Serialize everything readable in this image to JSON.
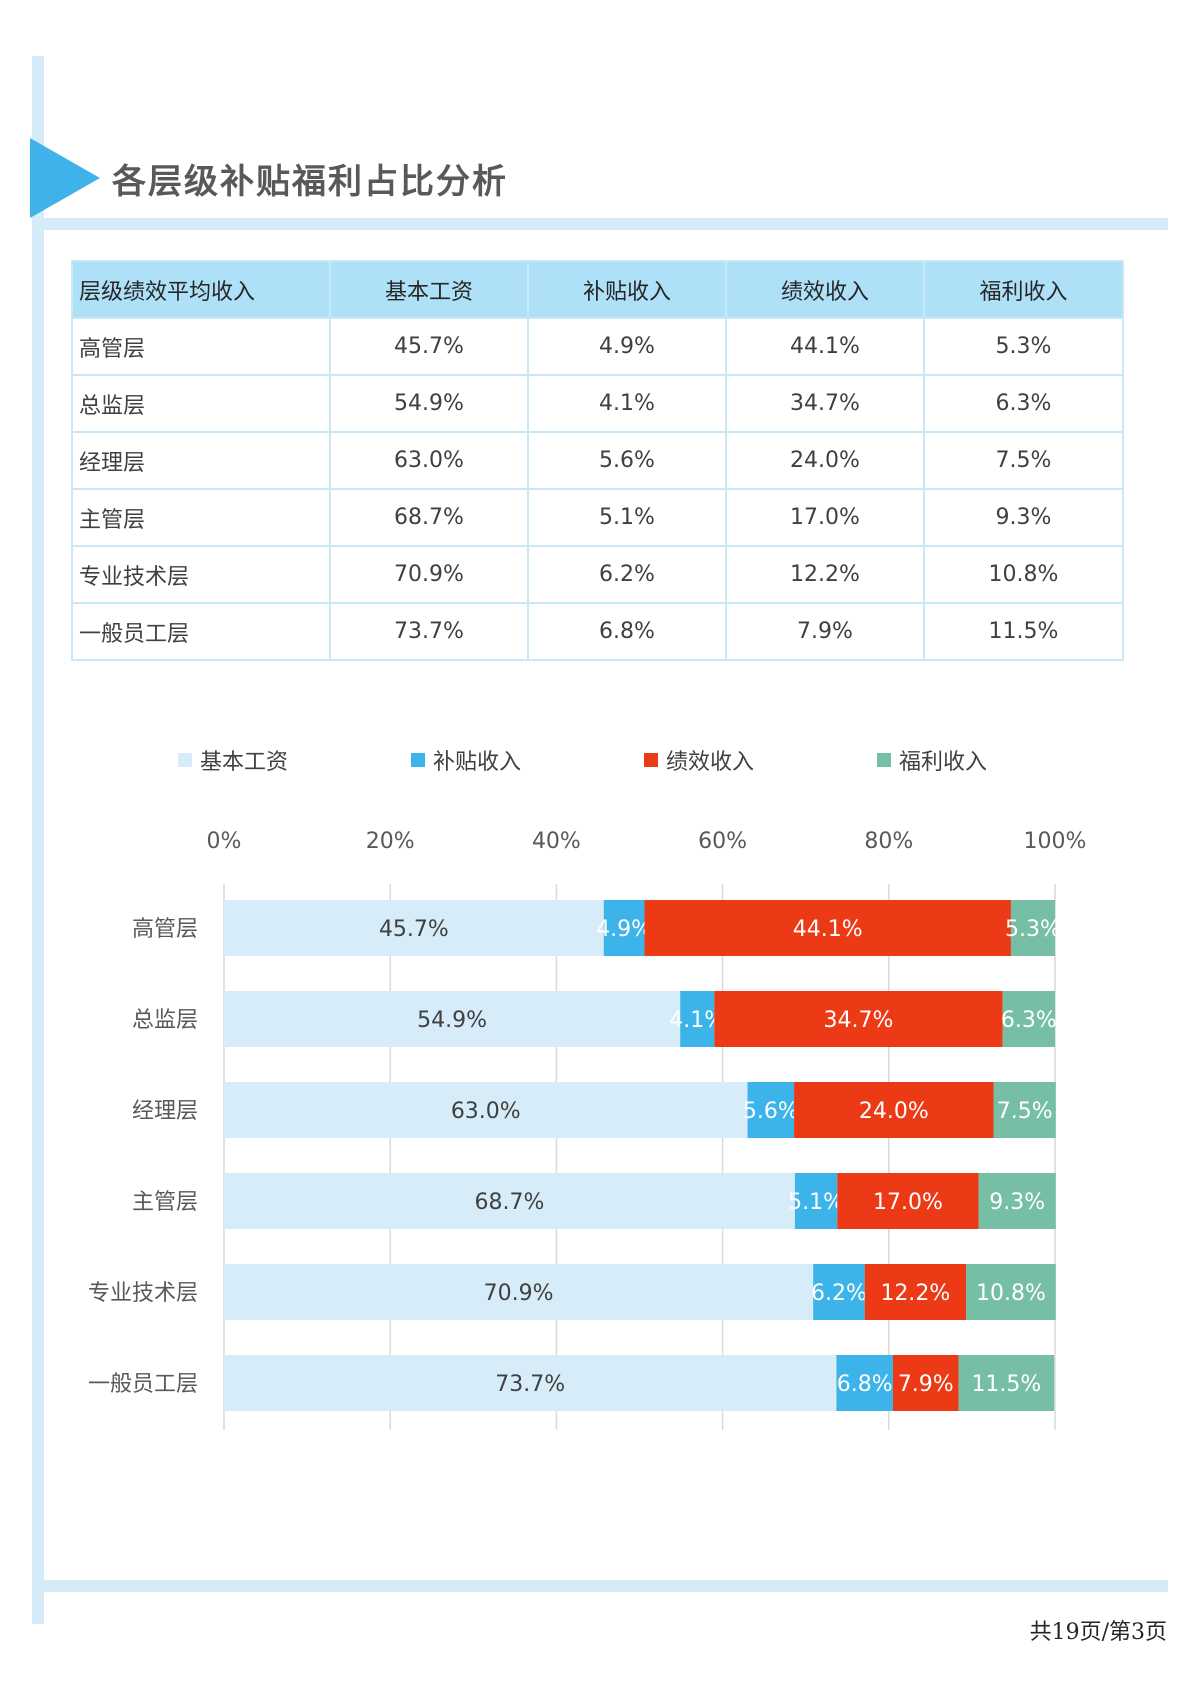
{
  "page": {
    "title": "各层级补贴福利占比分析",
    "footer": "共19页/第3页"
  },
  "table": {
    "headers": [
      "层级绩效平均收入",
      "基本工资",
      "补贴收入",
      "绩效收入",
      "福利收入"
    ],
    "rows": [
      [
        "高管层",
        "45.7%",
        "4.9%",
        "44.1%",
        "5.3%"
      ],
      [
        "总监层",
        "54.9%",
        "4.1%",
        "34.7%",
        "6.3%"
      ],
      [
        "经理层",
        "63.0%",
        "5.6%",
        "24.0%",
        "7.5%"
      ],
      [
        "主管层",
        "68.7%",
        "5.1%",
        "17.0%",
        "9.3%"
      ],
      [
        "专业技术层",
        "70.9%",
        "6.2%",
        "12.2%",
        "10.8%"
      ],
      [
        "一般员工层",
        "73.7%",
        "6.8%",
        "7.9%",
        "11.5%"
      ]
    ]
  },
  "chart_data": {
    "type": "bar",
    "orientation": "horizontal",
    "stacked": true,
    "percent": true,
    "categories": [
      "高管层",
      "总监层",
      "经理层",
      "主管层",
      "专业技术层",
      "一般员工层"
    ],
    "series": [
      {
        "name": "基本工资",
        "color": "#d6edf9",
        "values": [
          45.7,
          54.9,
          63.0,
          68.7,
          70.9,
          73.7
        ]
      },
      {
        "name": "补贴收入",
        "color": "#3cb3e9",
        "values": [
          4.9,
          4.1,
          5.6,
          5.1,
          6.2,
          6.8
        ]
      },
      {
        "name": "绩效收入",
        "color": "#ec3a16",
        "values": [
          44.1,
          34.7,
          24.0,
          17.0,
          12.2,
          7.9
        ]
      },
      {
        "name": "福利收入",
        "color": "#76bfa5",
        "values": [
          5.3,
          6.3,
          7.5,
          9.3,
          10.8,
          11.5
        ]
      }
    ],
    "xlim": [
      0,
      100
    ],
    "x_ticks": [
      "0%",
      "20%",
      "40%",
      "60%",
      "80%",
      "100%"
    ],
    "x_axis_position": "top",
    "legend_position": "top",
    "grid": true,
    "data_labels": true
  }
}
